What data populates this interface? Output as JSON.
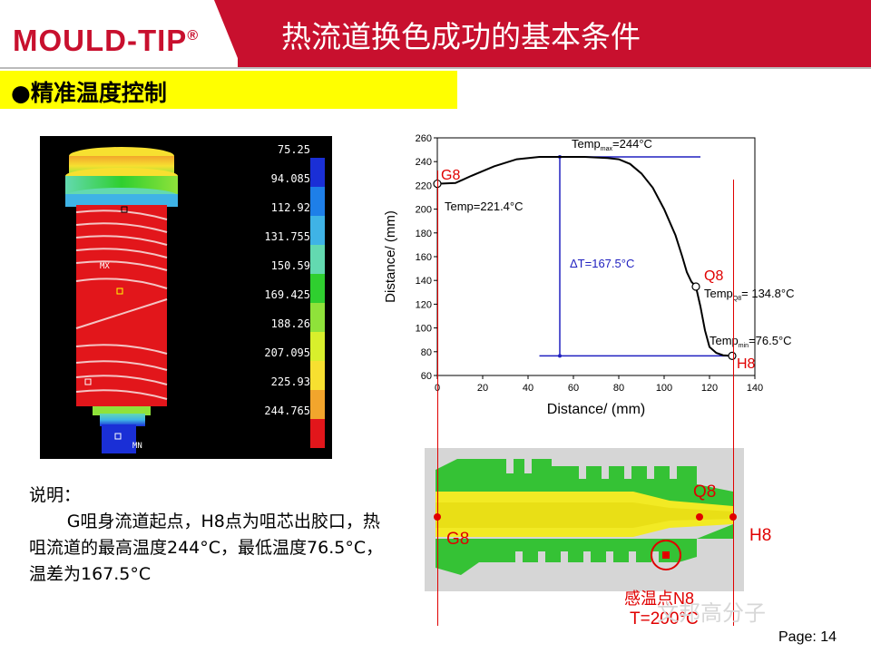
{
  "header": {
    "logo_text": "MOULD-TIP",
    "logo_mark": "®",
    "title": "热流道换色成功的基本条件"
  },
  "section": {
    "bullet": "●",
    "title": "精准温度控制"
  },
  "simulation": {
    "legend_values": [
      "75.25",
      "94.085",
      "112.92",
      "131.755",
      "150.59",
      "169.425",
      "188.26",
      "207.095",
      "225.93",
      "244.765"
    ],
    "legend_colors": [
      "#1a2fd6",
      "#1e7fe8",
      "#3fb3e6",
      "#63d9b0",
      "#2fcf2f",
      "#8fe23a",
      "#d8ef2c",
      "#f7e030",
      "#f2a52c",
      "#e2161b"
    ],
    "labels": {
      "mx": "MX",
      "mn": "MN"
    }
  },
  "explanation": {
    "heading": "说明：",
    "body": "G咀身流道起点，H8点为咀芯出胶口，热咀流道的最高温度244°C，最低温度76.5°C，温差为167.5°C"
  },
  "chart_data": {
    "type": "line",
    "xlabel": "Distance/ (mm)",
    "ylabel": "Distance/ (mm)",
    "xlim": [
      0,
      140
    ],
    "ylim": [
      60,
      260
    ],
    "xticks": [
      0,
      20,
      40,
      60,
      80,
      100,
      120,
      140
    ],
    "yticks": [
      60,
      80,
      100,
      120,
      140,
      160,
      180,
      200,
      220,
      240,
      260
    ],
    "series": [
      {
        "x": [
          0,
          8,
          15,
          25,
          35,
          45,
          55,
          65,
          75,
          80,
          85,
          90,
          95,
          100,
          105,
          108,
          110,
          112,
          114,
          116,
          118,
          120,
          123,
          126,
          130
        ],
        "y": [
          221.4,
          222,
          228,
          236,
          242,
          244,
          244,
          244,
          243,
          242,
          238,
          230,
          218,
          200,
          178,
          160,
          147,
          139,
          134.8,
          118,
          98,
          84,
          79,
          77,
          76.5
        ]
      }
    ],
    "points": [
      {
        "id": "G8",
        "x": 0,
        "y": 221.4
      },
      {
        "id": "Q8",
        "x": 114,
        "y": 134.8
      },
      {
        "id": "H8",
        "x": 130,
        "y": 76.5
      }
    ],
    "annotations": {
      "temp_max_prefix": "Temp",
      "temp_max_sub": "max",
      "temp_max_value": "=244°C",
      "temp_start": "Temp=221.4°C",
      "delta": "ΔT=167.5°C",
      "temp_q8_prefix": "Temp",
      "temp_q8_sub": "Q8",
      "temp_q8_value": "= 134.8°C",
      "temp_min_prefix": "Temp",
      "temp_min_sub": "min",
      "temp_min_value": "=76.5°C"
    },
    "reference_lines": {
      "max_y": 244,
      "min_y": 76.5,
      "delta_x": 54
    }
  },
  "cross_section": {
    "labels": {
      "g8": "G8",
      "q8": "Q8",
      "h8": "H8",
      "sensor": "感温点N8",
      "sensor_temp": "T=200°C"
    }
  },
  "footer": {
    "watermark": "文邦高分子",
    "page_label": "Page: 14"
  }
}
